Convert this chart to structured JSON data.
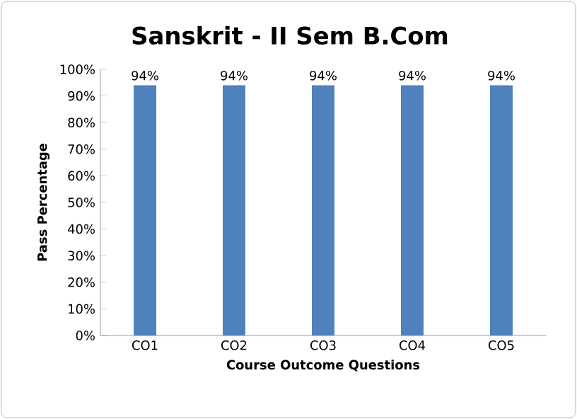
{
  "chart_data": {
    "type": "bar",
    "title": "Sanskrit - II Sem B.Com",
    "xlabel": "Course Outcome Questions",
    "ylabel": "Pass Percentage",
    "categories": [
      "CO1",
      "CO2",
      "CO3",
      "CO4",
      "CO5"
    ],
    "values": [
      94,
      94,
      94,
      94,
      94
    ],
    "value_labels": [
      "94%",
      "94%",
      "94%",
      "94%",
      "94%"
    ],
    "color": "#4f81bd",
    "ylim": [
      0,
      100
    ],
    "yticks": [
      {
        "value": 0,
        "label": "0%"
      },
      {
        "value": 10,
        "label": "10%"
      },
      {
        "value": 20,
        "label": "20%"
      },
      {
        "value": 30,
        "label": "30%"
      },
      {
        "value": 40,
        "label": "40%"
      },
      {
        "value": 50,
        "label": "50%"
      },
      {
        "value": 60,
        "label": "60%"
      },
      {
        "value": 70,
        "label": "70%"
      },
      {
        "value": 80,
        "label": "80%"
      },
      {
        "value": 90,
        "label": "90%"
      },
      {
        "value": 100,
        "label": "100%"
      }
    ],
    "grid": false
  }
}
